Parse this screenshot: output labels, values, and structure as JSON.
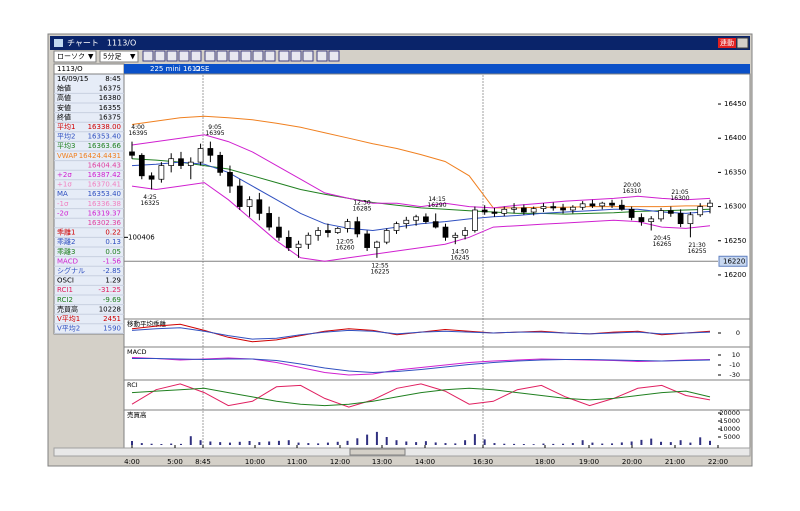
{
  "window": {
    "title": "チャート　1113/O",
    "sync_button": "連動"
  },
  "toolbar": {
    "chart_type": "ローソク",
    "interval": "5分足"
  },
  "symbol": "1113/O",
  "instrument": {
    "name": "225 mini 1612",
    "exchange": "OSE"
  },
  "info_panel": {
    "date": "16/09/15",
    "time": "8:45",
    "rows": [
      {
        "label": "始値",
        "value": "16375",
        "color": "#000000"
      },
      {
        "label": "高値",
        "value": "16380",
        "color": "#000000"
      },
      {
        "label": "安値",
        "value": "16355",
        "color": "#000000"
      },
      {
        "label": "終値",
        "value": "16375",
        "color": "#000000"
      },
      {
        "label": "平均1",
        "value": "16338.00",
        "color": "#d00000"
      },
      {
        "label": "平均2",
        "value": "16353.40",
        "color": "#3050c0"
      },
      {
        "label": "平均3",
        "value": "16363.66",
        "color": "#208020"
      },
      {
        "label": "VWAP",
        "value": "16424.4431",
        "color": "#f08020"
      },
      {
        "value": "16404.43",
        "color": "#e040a0"
      },
      {
        "label": "+2σ",
        "value": "16387.42",
        "color": "#d020d0"
      },
      {
        "label": "+1σ",
        "value": "16370.41",
        "color": "#f080c0"
      },
      {
        "label": "MA",
        "value": "16353.40",
        "color": "#3050c0"
      },
      {
        "label": "-1σ",
        "value": "16336.38",
        "color": "#f080c0"
      },
      {
        "label": "-2σ",
        "value": "16319.37",
        "color": "#d020d0"
      },
      {
        "value": "16302.36",
        "color": "#e040a0"
      },
      {
        "label": "乖離1",
        "value": "0.22",
        "color": "#d00000"
      },
      {
        "label": "乖離2",
        "value": "0.13",
        "color": "#3050c0"
      },
      {
        "label": "乖離3",
        "value": "0.05",
        "color": "#208020"
      },
      {
        "label": "MACD",
        "value": "-1.56",
        "color": "#d020d0"
      },
      {
        "label": "シグナル",
        "value": "-2.85",
        "color": "#3050c0"
      },
      {
        "label": "OSCI",
        "value": "1.29",
        "color": "#000000"
      },
      {
        "label": "RCI1",
        "value": "-31.25",
        "color": "#e02060"
      },
      {
        "label": "RCI2",
        "value": "-9.69",
        "color": "#208020"
      },
      {
        "label": "売買高",
        "value": "10228",
        "color": "#000000"
      },
      {
        "label": "V平均1",
        "value": "2451",
        "color": "#d00000"
      },
      {
        "label": "V平均2",
        "value": "1590",
        "color": "#3050c0"
      }
    ]
  },
  "price_chart": {
    "type": "candlestick",
    "ylim": [
      16137,
      16491
    ],
    "yticks": [
      16200,
      16250,
      16300,
      16350,
      16400,
      16450
    ],
    "current_price": 16220,
    "marker_volume": 100406,
    "candles": [
      [
        16380,
        16395,
        16370,
        16375
      ],
      [
        16375,
        16378,
        16340,
        16345
      ],
      [
        16345,
        16350,
        16325,
        16340
      ],
      [
        16340,
        16365,
        16335,
        16360
      ],
      [
        16360,
        16378,
        16350,
        16370
      ],
      [
        16370,
        16380,
        16355,
        16360
      ],
      [
        16360,
        16372,
        16340,
        16365
      ],
      [
        16365,
        16392,
        16360,
        16385
      ],
      [
        16385,
        16395,
        16365,
        16375
      ],
      [
        16375,
        16380,
        16345,
        16350
      ],
      [
        16350,
        16360,
        16320,
        16330
      ],
      [
        16330,
        16340,
        16295,
        16300
      ],
      [
        16300,
        16315,
        16285,
        16310
      ],
      [
        16310,
        16320,
        16280,
        16290
      ],
      [
        16290,
        16300,
        16265,
        16270
      ],
      [
        16270,
        16285,
        16250,
        16255
      ],
      [
        16255,
        16265,
        16235,
        16240
      ],
      [
        16240,
        16250,
        16225,
        16245
      ],
      [
        16245,
        16262,
        16238,
        16258
      ],
      [
        16258,
        16270,
        16250,
        16265
      ],
      [
        16265,
        16275,
        16255,
        16262
      ],
      [
        16262,
        16270,
        16260,
        16268
      ],
      [
        16268,
        16282,
        16262,
        16278
      ],
      [
        16278,
        16285,
        16255,
        16260
      ],
      [
        16260,
        16265,
        16235,
        16240
      ],
      [
        16240,
        16250,
        16225,
        16248
      ],
      [
        16248,
        16268,
        16245,
        16265
      ],
      [
        16265,
        16278,
        16260,
        16275
      ],
      [
        16275,
        16285,
        16268,
        16280
      ],
      [
        16280,
        16288,
        16272,
        16285
      ],
      [
        16285,
        16290,
        16275,
        16278
      ],
      [
        16278,
        16290,
        16268,
        16270
      ],
      [
        16270,
        16275,
        16250,
        16255
      ],
      [
        16255,
        16262,
        16245,
        16258
      ],
      [
        16258,
        16270,
        16252,
        16265
      ],
      [
        16265,
        16300,
        16262,
        16295
      ],
      [
        16295,
        16302,
        16288,
        16292
      ],
      [
        16292,
        16298,
        16285,
        16290
      ],
      [
        16290,
        16300,
        16286,
        16296
      ],
      [
        16296,
        16305,
        16290,
        16298
      ],
      [
        16298,
        16303,
        16288,
        16292
      ],
      [
        16292,
        16300,
        16287,
        16297
      ],
      [
        16297,
        16305,
        16292,
        16300
      ],
      [
        16300,
        16306,
        16294,
        16298
      ],
      [
        16298,
        16304,
        16290,
        16295
      ],
      [
        16295,
        16302,
        16290,
        16299
      ],
      [
        16299,
        16308,
        16295,
        16304
      ],
      [
        16304,
        16310,
        16298,
        16301
      ],
      [
        16301,
        16307,
        16296,
        16305
      ],
      [
        16305,
        16310,
        16298,
        16302
      ],
      [
        16302,
        16310,
        16294,
        16296
      ],
      [
        16296,
        16300,
        16280,
        16284
      ],
      [
        16284,
        16290,
        16272,
        16278
      ],
      [
        16278,
        16286,
        16265,
        16282
      ],
      [
        16282,
        16298,
        16278,
        16294
      ],
      [
        16294,
        16300,
        16285,
        16290
      ],
      [
        16290,
        16296,
        16270,
        16275
      ],
      [
        16275,
        16292,
        16255,
        16288
      ],
      [
        16288,
        16305,
        16285,
        16300
      ],
      [
        16300,
        16310,
        16290,
        16305
      ]
    ],
    "series": [
      {
        "color": "#f08020",
        "values": [
          16420,
          16425,
          16430,
          16432,
          16430,
          16427,
          16422,
          16416,
          16408,
          16400,
          16392,
          16385,
          16376,
          16366,
          16345,
          16298,
          16298,
          16299,
          16299,
          16300,
          16300,
          16300,
          16300,
          16301,
          16301
        ]
      },
      {
        "color": "#208020",
        "values": [
          16370,
          16368,
          16365,
          16360,
          16355,
          16345,
          16335,
          16325,
          16318,
          16312,
          16306,
          16302,
          16298,
          16296,
          16294,
          16292,
          16290,
          16290,
          16289,
          16290,
          16291,
          16293,
          16294,
          16295,
          16296
        ]
      },
      {
        "color": "#3050c0",
        "values": [
          16360,
          16362,
          16365,
          16362,
          16350,
          16330,
          16310,
          16290,
          16275,
          16268,
          16265,
          16270,
          16275,
          16278,
          16282,
          16285,
          16287,
          16290,
          16292,
          16294,
          16296,
          16296,
          16292,
          16290,
          16293
        ]
      },
      {
        "color": "#d020d0",
        "values": [
          16390,
          16395,
          16400,
          16405,
          16395,
          16380,
          16360,
          16340,
          16320,
          16312,
          16305,
          16305,
          16300,
          16305,
          16300,
          16298,
          16302,
          16305,
          16308,
          16310,
          16312,
          16315,
          16312,
          16310,
          16312
        ]
      },
      {
        "color": "#d020d0",
        "values": [
          16330,
          16325,
          16330,
          16335,
          16310,
          16280,
          16250,
          16225,
          16220,
          16225,
          16230,
          16235,
          16240,
          16245,
          16255,
          16270,
          16272,
          16274,
          16276,
          16278,
          16280,
          16278,
          16270,
          16268,
          16272
        ]
      }
    ],
    "annotations": [
      {
        "time": "4:00",
        "price": 16395
      },
      {
        "time": "4:25",
        "price": 16325
      },
      {
        "time": "9:05",
        "price": 16395
      },
      {
        "time": "12:30",
        "price": 16285
      },
      {
        "time": "12:05",
        "price": 16260
      },
      {
        "time": "12:55",
        "price": 16225
      },
      {
        "time": "14:15",
        "price": 16290
      },
      {
        "time": "14:50",
        "price": 16245
      },
      {
        "time": "20:00",
        "price": 16310
      },
      {
        "time": "21:05",
        "price": 16300
      },
      {
        "time": "20:45",
        "price": 16265
      },
      {
        "time": "21:30",
        "price": 16255
      }
    ]
  },
  "panels": [
    {
      "title": "移動平均乖離",
      "ylim": [
        -1.5,
        1.5
      ],
      "yticks": [
        0
      ],
      "series": [
        {
          "color": "#d00000",
          "values": [
            0.5,
            0.8,
            1,
            0.3,
            -0.5,
            -1,
            -0.8,
            -0.3,
            0.2,
            0.5,
            0.3,
            -0.2,
            0.1,
            0.4,
            0.2,
            0,
            0.1,
            0.2,
            0,
            -0.1,
            0.1,
            0.2,
            -0.2,
            0,
            0.2
          ]
        },
        {
          "color": "#3050c0",
          "values": [
            0.3,
            0.5,
            0.6,
            0.2,
            -0.3,
            -0.7,
            -0.6,
            -0.2,
            0.1,
            0.3,
            0.2,
            -0.1,
            0.1,
            0.2,
            0.1,
            0,
            0.1,
            0.1,
            0,
            -0.1,
            0,
            0.1,
            -0.1,
            0,
            0.1
          ]
        }
      ]
    },
    {
      "title": "MACD",
      "ylim": [
        -40,
        24
      ],
      "yticks": [
        10,
        -10,
        -30
      ],
      "series": [
        {
          "color": "#d020d0",
          "values": [
            5,
            3,
            0,
            2,
            4,
            2,
            -5,
            -15,
            -25,
            -30,
            -28,
            -20,
            -15,
            -10,
            -5,
            -2,
            0,
            2,
            1,
            0,
            -1,
            -3,
            -2,
            0,
            1
          ]
        },
        {
          "color": "#3050c0",
          "values": [
            3,
            3,
            2,
            1,
            2,
            2,
            -1,
            -8,
            -16,
            -22,
            -25,
            -23,
            -19,
            -14,
            -9,
            -5,
            -2,
            0,
            1,
            1,
            0,
            -1,
            -2,
            -1,
            0
          ]
        }
      ]
    },
    {
      "title": "RCI",
      "ylim": [
        -100,
        100
      ],
      "series": [
        {
          "color": "#e02060",
          "values": [
            -60,
            40,
            80,
            20,
            -70,
            -40,
            60,
            70,
            -20,
            -80,
            -30,
            50,
            80,
            30,
            -60,
            -40,
            40,
            70,
            -10,
            -70,
            -20,
            50,
            70,
            0,
            -30
          ]
        },
        {
          "color": "#208020",
          "values": [
            20,
            30,
            40,
            50,
            20,
            -10,
            -40,
            -60,
            -70,
            -60,
            -40,
            -10,
            20,
            40,
            50,
            40,
            20,
            0,
            -20,
            -30,
            -20,
            0,
            20,
            30,
            -10
          ]
        }
      ]
    },
    {
      "title": "売買高",
      "ylim": [
        0,
        21250
      ],
      "yticks": [
        20000,
        15000,
        10000,
        5000
      ],
      "bar_color": "#303080",
      "bars": [
        2500,
        1200,
        800,
        600,
        900,
        700,
        5500,
        3000,
        2200,
        1800,
        1500,
        2000,
        2500,
        1800,
        2200,
        2600,
        3000,
        1500,
        1200,
        1000,
        1500,
        2000,
        2600,
        4200,
        6500,
        8200,
        5000,
        3000,
        2200,
        1800,
        2400,
        1600,
        1200,
        1000,
        3000,
        6800,
        3500,
        1200,
        800,
        700,
        600,
        500,
        900,
        700,
        800,
        1200,
        3000,
        1500,
        900,
        1000,
        1600,
        2200,
        3200,
        4000,
        2000,
        1800,
        3000,
        1500,
        4800,
        2600
      ]
    }
  ],
  "time_axis": [
    "4:00",
    "5:00",
    "8:45",
    "10:00",
    "11:00",
    "12:00",
    "13:00",
    "14:00",
    "16:30",
    "18:00",
    "19:00",
    "20:00",
    "21:00",
    "22:00"
  ]
}
